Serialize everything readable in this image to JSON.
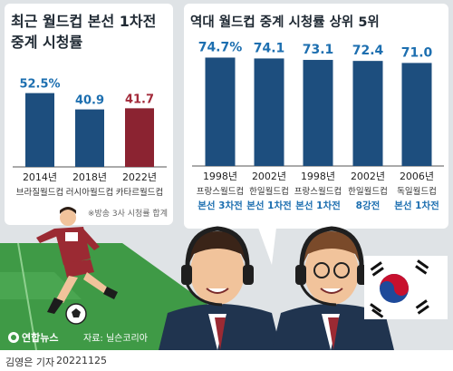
{
  "chart_data": [
    {
      "type": "bar",
      "title_line1": "최근 월드컵 본선 1차전",
      "title_line2": "중계 시청률",
      "categories": [
        "2014년",
        "2018년",
        "2022년"
      ],
      "sublabels": [
        "브라질월드컵",
        "러시아월드컵",
        "카타르월드컵"
      ],
      "values": [
        52.5,
        40.9,
        41.7
      ],
      "value_labels": [
        "52.5%",
        "40.9",
        "41.7"
      ],
      "colors": [
        "#1d4e7e",
        "#1d4e7e",
        "#8b2331"
      ],
      "note": "※방송 3사 시청률 합계"
    },
    {
      "type": "bar",
      "title": "역대 월드컵 중계 시청률 상위 5위",
      "categories": [
        "1998년",
        "2002년",
        "1998년",
        "2002년",
        "2006년"
      ],
      "sublabels": [
        "프랑스월드컵",
        "한일월드컵",
        "프랑스월드컵",
        "한일월드컵",
        "독일월드컵"
      ],
      "stages": [
        "본선 3차전",
        "본선 1차전",
        "본선 1차전",
        "8강전",
        "본선 1차전"
      ],
      "values": [
        74.7,
        74.1,
        73.1,
        72.4,
        71.0
      ],
      "value_labels": [
        "74.7%",
        "74.1",
        "73.1",
        "72.4",
        "71.0"
      ],
      "colors": [
        "#1d4e7e",
        "#1d4e7e",
        "#1d4e7e",
        "#1d4e7e",
        "#1d4e7e"
      ]
    }
  ],
  "source": "자료: 닐슨코리아",
  "logo_text": "연합뉴스",
  "credit": "김영은 기자",
  "date": "20221125",
  "colors": {
    "background": "#dfe3e6",
    "panel": "#ffffff",
    "bar_blue": "#1d4e7e",
    "bar_red": "#8b2331",
    "value_blue": "#1d6fb0",
    "value_red": "#a32a3a",
    "stage_blue": "#1d6fb0"
  }
}
